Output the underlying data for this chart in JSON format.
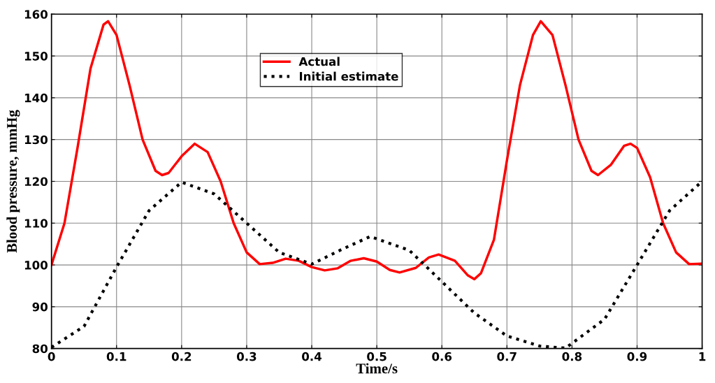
{
  "chart_data": {
    "type": "line",
    "xlabel": "Time/s",
    "ylabel": "Blood pressure, mmHg",
    "xlim": [
      0,
      1
    ],
    "ylim": [
      80,
      160
    ],
    "xticks": [
      0,
      0.1,
      0.2,
      0.3,
      0.4,
      0.5,
      0.6,
      0.7,
      0.8,
      0.9,
      1
    ],
    "yticks": [
      80,
      90,
      100,
      110,
      120,
      130,
      140,
      150,
      160
    ],
    "grid": true,
    "legend": "top",
    "marker": "none",
    "series": [
      {
        "name": "Actual",
        "color": "#ff0000",
        "line_style": "solid",
        "x": [
          0,
          0.02,
          0.04,
          0.06,
          0.08,
          0.087,
          0.1,
          0.12,
          0.14,
          0.16,
          0.17,
          0.18,
          0.2,
          0.22,
          0.24,
          0.26,
          0.28,
          0.3,
          0.32,
          0.34,
          0.36,
          0.38,
          0.4,
          0.42,
          0.44,
          0.46,
          0.48,
          0.5,
          0.52,
          0.535,
          0.56,
          0.58,
          0.595,
          0.62,
          0.64,
          0.65,
          0.66,
          0.68,
          0.7,
          0.72,
          0.74,
          0.752,
          0.77,
          0.79,
          0.81,
          0.83,
          0.84,
          0.86,
          0.88,
          0.89,
          0.9,
          0.92,
          0.94,
          0.96,
          0.98,
          1.0
        ],
        "values": [
          100,
          110,
          128,
          147,
          157.5,
          158.3,
          155,
          143,
          130,
          122.5,
          121.5,
          122,
          126,
          129,
          127,
          120,
          110,
          103,
          100.2,
          100.5,
          101.5,
          101,
          99.5,
          98.7,
          99.2,
          101,
          101.6,
          100.8,
          98.8,
          98.2,
          99.3,
          101.8,
          102.5,
          101,
          97.5,
          96.6,
          98,
          106,
          125,
          143,
          155,
          158.3,
          155,
          143,
          130,
          122.5,
          121.5,
          124,
          128.5,
          129,
          128,
          121,
          110,
          103,
          100.2,
          100.3
        ]
      },
      {
        "name": "Initial estimate",
        "color": "#000000",
        "line_style": "dotted",
        "x": [
          0,
          0.05,
          0.1,
          0.15,
          0.2,
          0.25,
          0.3,
          0.35,
          0.4,
          0.45,
          0.49,
          0.55,
          0.6,
          0.65,
          0.7,
          0.75,
          0.79,
          0.85,
          0.9,
          0.95,
          1.0
        ],
        "values": [
          80.3,
          85.3,
          99.5,
          113,
          119.8,
          117,
          110,
          103,
          100.2,
          104,
          106.8,
          103.5,
          96,
          88.5,
          83,
          80.6,
          80.1,
          87,
          100,
          113,
          120
        ]
      }
    ]
  }
}
